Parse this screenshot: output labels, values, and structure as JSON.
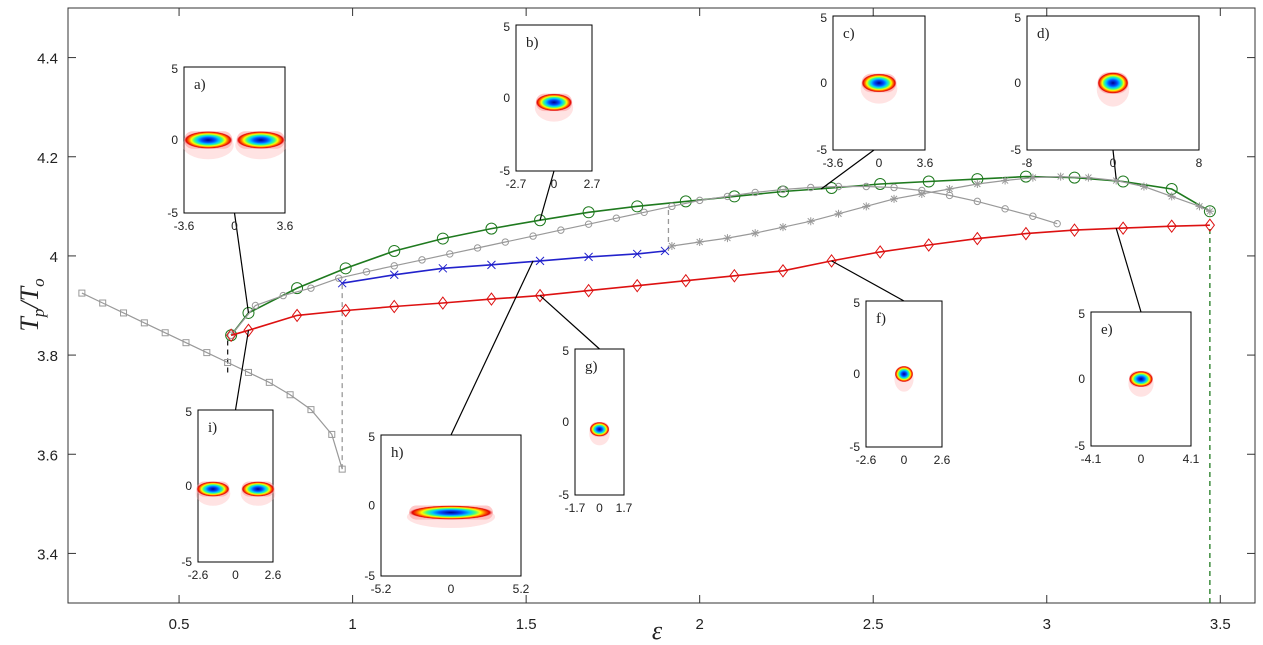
{
  "chart_data": {
    "type": "line",
    "xlabel": "ε",
    "ylabel_main": "T",
    "ylabel_main_sub": "p",
    "ylabel_den": "T",
    "ylabel_den_sub": "o",
    "xlim": [
      0.18,
      3.6
    ],
    "ylim": [
      3.3,
      4.5
    ],
    "xticks": [
      0.5,
      1,
      1.5,
      2,
      2.5,
      3,
      3.5
    ],
    "xtick_labels": [
      "0.5",
      "1",
      "1.5",
      "2",
      "2.5",
      "3",
      "3.5"
    ],
    "yticks": [
      3.4,
      3.6,
      3.8,
      4.0,
      4.2,
      4.4
    ],
    "ytick_labels": [
      "3.4",
      "3.6",
      "3.8",
      "4",
      "4.2",
      "4.4"
    ],
    "grid": false,
    "series": [
      {
        "color": "#1f7a1f",
        "marker": "circle",
        "dash": "",
        "x": [
          0.65,
          0.7,
          0.84,
          0.98,
          1.12,
          1.26,
          1.4,
          1.54,
          1.68,
          1.82,
          1.96,
          2.1,
          2.24,
          2.38,
          2.52,
          2.66,
          2.8,
          2.94,
          3.08,
          3.22,
          3.36,
          3.47
        ],
        "y": [
          3.84,
          3.885,
          3.935,
          3.975,
          4.01,
          4.035,
          4.055,
          4.072,
          4.088,
          4.1,
          4.11,
          4.12,
          4.13,
          4.137,
          4.145,
          4.15,
          4.155,
          4.16,
          4.158,
          4.15,
          4.135,
          4.09
        ]
      },
      {
        "color": "#999999",
        "marker": "smallcircle",
        "dash": "",
        "x": [
          0.65,
          0.72,
          0.8,
          0.88,
          0.96,
          1.04,
          1.12,
          1.2,
          1.28,
          1.36,
          1.44,
          1.52,
          1.6,
          1.68,
          1.76,
          1.84,
          1.92,
          2.0,
          2.08,
          2.16,
          2.24,
          2.32,
          2.4,
          2.48,
          2.56,
          2.64,
          2.72,
          2.8,
          2.88,
          2.96,
          3.03
        ],
        "y": [
          3.84,
          3.9,
          3.92,
          3.935,
          3.955,
          3.968,
          3.98,
          3.992,
          4.004,
          4.016,
          4.028,
          4.04,
          4.052,
          4.064,
          4.076,
          4.088,
          4.1,
          4.112,
          4.12,
          4.128,
          4.134,
          4.138,
          4.14,
          4.14,
          4.138,
          4.132,
          4.122,
          4.11,
          4.095,
          4.08,
          4.065
        ]
      },
      {
        "color": "#2222cc",
        "marker": "x",
        "dash": "",
        "x": [
          0.97,
          1.12,
          1.26,
          1.4,
          1.54,
          1.68,
          1.82,
          1.9
        ],
        "y": [
          3.945,
          3.962,
          3.975,
          3.982,
          3.99,
          3.998,
          4.004,
          4.01
        ]
      },
      {
        "color": "#999999",
        "marker": "star",
        "dash": "",
        "x": [
          1.92,
          2.0,
          2.08,
          2.16,
          2.24,
          2.32,
          2.4,
          2.48,
          2.56,
          2.64,
          2.72,
          2.8,
          2.88,
          2.96,
          3.04,
          3.12,
          3.2,
          3.28,
          3.36,
          3.44,
          3.47
        ],
        "y": [
          4.02,
          4.028,
          4.036,
          4.046,
          4.058,
          4.07,
          4.085,
          4.1,
          4.115,
          4.125,
          4.135,
          4.145,
          4.152,
          4.158,
          4.16,
          4.158,
          4.152,
          4.14,
          4.12,
          4.1,
          4.09
        ]
      },
      {
        "color": "#dd1111",
        "marker": "diamond",
        "dash": "",
        "x": [
          0.65,
          0.7,
          0.84,
          0.98,
          1.12,
          1.26,
          1.4,
          1.54,
          1.68,
          1.82,
          1.96,
          2.1,
          2.24,
          2.38,
          2.52,
          2.66,
          2.8,
          2.94,
          3.08,
          3.22,
          3.36,
          3.47
        ],
        "y": [
          3.84,
          3.85,
          3.88,
          3.89,
          3.898,
          3.905,
          3.913,
          3.92,
          3.93,
          3.94,
          3.95,
          3.96,
          3.97,
          3.99,
          4.008,
          4.022,
          4.035,
          4.045,
          4.052,
          4.056,
          4.06,
          4.062
        ]
      },
      {
        "color": "#999999",
        "marker": "square",
        "dash": "",
        "x": [
          0.22,
          0.28,
          0.34,
          0.4,
          0.46,
          0.52,
          0.58,
          0.64,
          0.7,
          0.76,
          0.82,
          0.88,
          0.94,
          0.97
        ],
        "y": [
          3.925,
          3.905,
          3.885,
          3.865,
          3.845,
          3.825,
          3.805,
          3.785,
          3.765,
          3.745,
          3.72,
          3.69,
          3.64,
          3.57
        ]
      }
    ],
    "vlines": [
      {
        "x": 0.64,
        "y0": 3.765,
        "y1": 3.84,
        "color": "#222222"
      },
      {
        "x": 0.97,
        "y0": 3.57,
        "y1": 3.945,
        "color": "#999999"
      },
      {
        "x": 1.91,
        "y0": 4.01,
        "y1": 4.1,
        "color": "#999999"
      },
      {
        "x": 3.47,
        "y0": 3.3,
        "y1": 4.06,
        "color": "#1f7a1f"
      }
    ],
    "insets": [
      {
        "id": "a",
        "label": "a)",
        "xticks": [
          "-3.6",
          "0",
          "3.6"
        ],
        "yticks": [
          "5",
          "0",
          "-5"
        ],
        "blobs": [
          {
            "cx": 0.24,
            "cy": 0.5,
            "rx": 0.24,
            "ry": 0.06
          },
          {
            "cx": 0.76,
            "cy": 0.5,
            "rx": 0.24,
            "ry": 0.06
          }
        ],
        "anchor": {
          "x": 0.7,
          "y": 3.885
        }
      },
      {
        "id": "b",
        "label": "b)",
        "xticks": [
          "-2.7",
          "0",
          "2.7"
        ],
        "yticks": [
          "5",
          "0",
          "-5"
        ],
        "blobs": [
          {
            "cx": 0.5,
            "cy": 0.53,
            "rx": 0.24,
            "ry": 0.06
          }
        ],
        "anchor": {
          "x": 1.54,
          "y": 4.072
        }
      },
      {
        "id": "c",
        "label": "c)",
        "xticks": [
          "-3.6",
          "0",
          "3.6"
        ],
        "yticks": [
          "5",
          "0",
          "-5"
        ],
        "blobs": [
          {
            "cx": 0.5,
            "cy": 0.5,
            "rx": 0.19,
            "ry": 0.07
          }
        ],
        "anchor": {
          "x": 2.35,
          "y": 4.135
        }
      },
      {
        "id": "d",
        "label": "d)",
        "xticks": [
          "-8",
          "0",
          "8"
        ],
        "yticks": [
          "5",
          "0",
          "-5"
        ],
        "blobs": [
          {
            "cx": 0.5,
            "cy": 0.5,
            "rx": 0.09,
            "ry": 0.08
          }
        ],
        "anchor": {
          "x": 3.2,
          "y": 4.155
        }
      },
      {
        "id": "e",
        "label": "e)",
        "xticks": [
          "-4.1",
          "0",
          "4.1"
        ],
        "yticks": [
          "5",
          "0",
          "-5"
        ],
        "blobs": [
          {
            "cx": 0.5,
            "cy": 0.5,
            "rx": 0.12,
            "ry": 0.06
          }
        ],
        "anchor": {
          "x": 3.2,
          "y": 4.056
        }
      },
      {
        "id": "f",
        "label": "f)",
        "xticks": [
          "-2.6",
          "0",
          "2.6"
        ],
        "yticks": [
          "5",
          "0",
          "-5"
        ],
        "blobs": [
          {
            "cx": 0.5,
            "cy": 0.5,
            "rx": 0.12,
            "ry": 0.055
          }
        ],
        "anchor": {
          "x": 2.38,
          "y": 3.99
        }
      },
      {
        "id": "g",
        "label": "g)",
        "xticks": [
          "-1.7",
          "0",
          "1.7"
        ],
        "yticks": [
          "5",
          "0",
          "-5"
        ],
        "blobs": [
          {
            "cx": 0.5,
            "cy": 0.55,
            "rx": 0.2,
            "ry": 0.05
          }
        ],
        "anchor": {
          "x": 1.54,
          "y": 3.92
        }
      },
      {
        "id": "h",
        "label": "h)",
        "xticks": [
          "-5.2",
          "0",
          "5.2"
        ],
        "yticks": [
          "5",
          "0",
          "-5"
        ],
        "blobs": [
          {
            "cx": 0.5,
            "cy": 0.55,
            "rx": 0.3,
            "ry": 0.05
          }
        ],
        "anchor": {
          "x": 1.52,
          "y": 3.99
        }
      },
      {
        "id": "i",
        "label": "i)",
        "xticks": [
          "-2.6",
          "0",
          "2.6"
        ],
        "yticks": [
          "5",
          "0",
          "-5"
        ],
        "blobs": [
          {
            "cx": 0.2,
            "cy": 0.52,
            "rx": 0.22,
            "ry": 0.05
          },
          {
            "cx": 0.8,
            "cy": 0.52,
            "rx": 0.22,
            "ry": 0.05
          }
        ],
        "anchor": {
          "x": 0.7,
          "y": 3.85
        }
      }
    ]
  }
}
